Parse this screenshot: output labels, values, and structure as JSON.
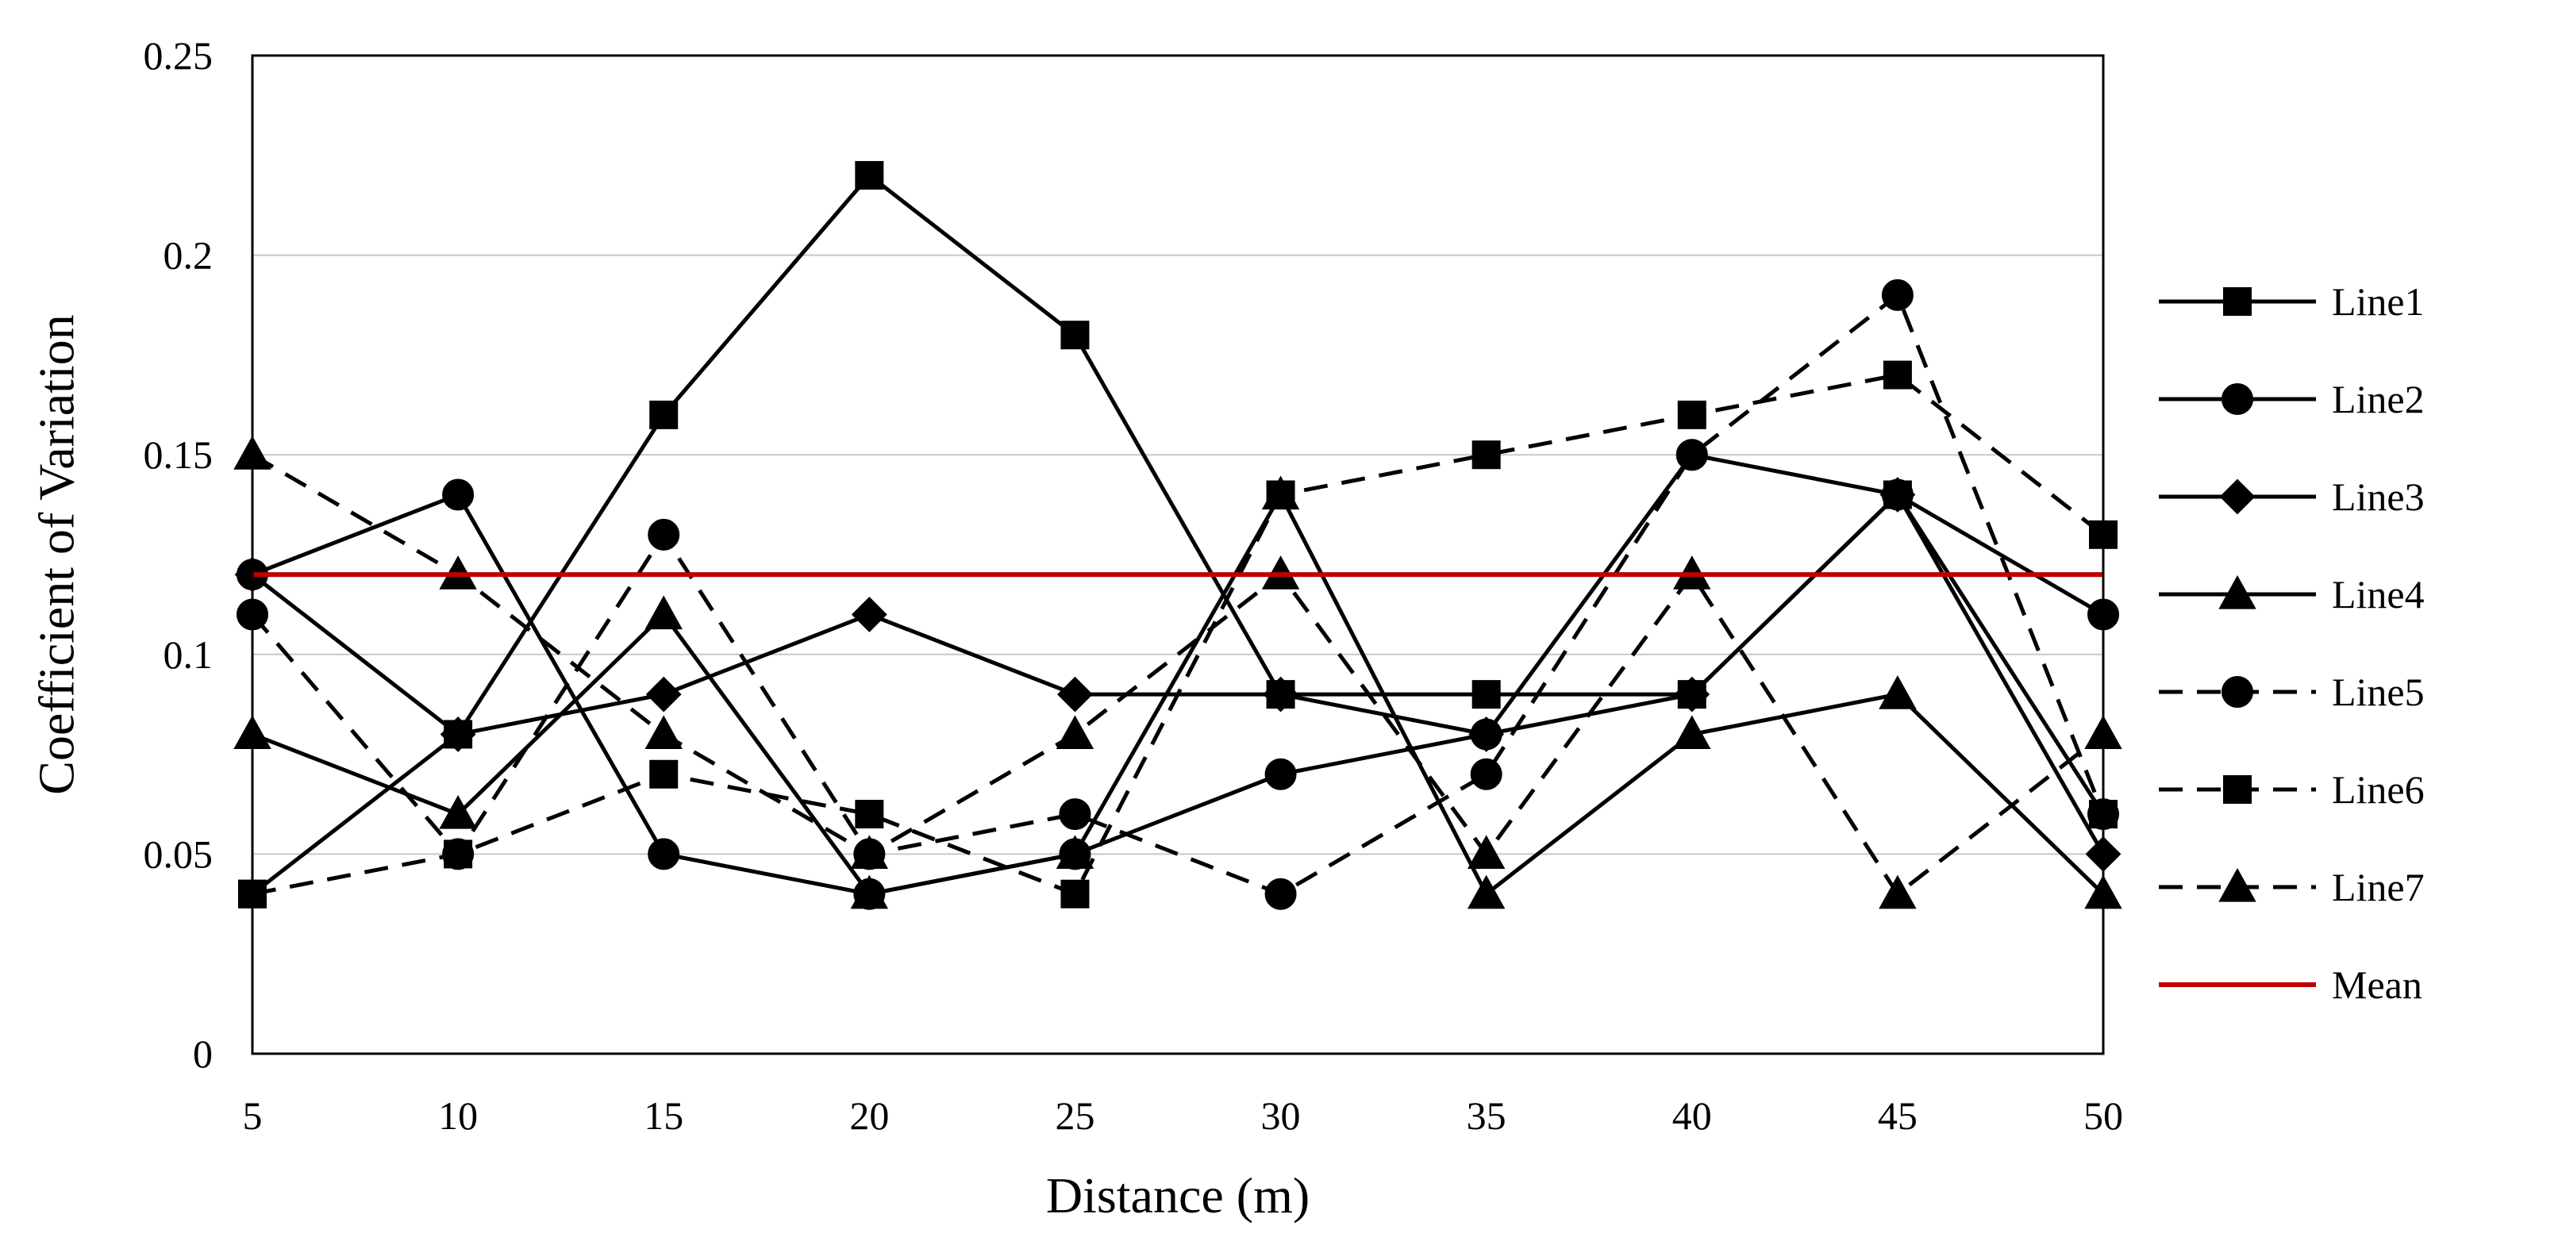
{
  "chart_data": {
    "type": "line",
    "title": "",
    "xlabel": "Distance (m)",
    "ylabel": "Coefficient of Variation",
    "x": [
      5,
      10,
      15,
      20,
      25,
      30,
      35,
      40,
      45,
      50
    ],
    "x_tick_labels": [
      "5",
      "10",
      "15",
      "20",
      "25",
      "30",
      "35",
      "40",
      "45",
      "50"
    ],
    "xlim": [
      5,
      50
    ],
    "ylim": [
      0,
      0.25
    ],
    "y_tick_labels": [
      "0",
      "0.05",
      "0.1",
      "0.15",
      "0.2",
      "0.25"
    ],
    "y_tick_values": [
      0,
      0.05,
      0.1,
      0.15,
      0.2,
      0.25
    ],
    "grid": "horizontal",
    "legend_position": "right",
    "series": [
      {
        "name": "Line1",
        "marker": "square",
        "dash": "solid",
        "color": "#000000",
        "values": [
          0.04,
          0.08,
          0.16,
          0.22,
          0.18,
          0.09,
          0.09,
          0.09,
          0.14,
          0.06
        ]
      },
      {
        "name": "Line2",
        "marker": "circle",
        "dash": "solid",
        "color": "#000000",
        "values": [
          0.12,
          0.14,
          0.05,
          0.04,
          0.05,
          0.07,
          0.08,
          0.15,
          0.14,
          0.11
        ]
      },
      {
        "name": "Line3",
        "marker": "diamond",
        "dash": "solid",
        "color": "#000000",
        "values": [
          0.12,
          0.08,
          0.09,
          0.11,
          0.09,
          0.09,
          0.08,
          0.09,
          0.14,
          0.05
        ]
      },
      {
        "name": "Line4",
        "marker": "triangle",
        "dash": "solid",
        "color": "#000000",
        "values": [
          0.08,
          0.06,
          0.11,
          0.04,
          0.05,
          0.14,
          0.04,
          0.08,
          0.09,
          0.04
        ]
      },
      {
        "name": "Line5",
        "marker": "circle",
        "dash": "dashed",
        "color": "#000000",
        "values": [
          0.11,
          0.05,
          0.13,
          0.05,
          0.06,
          0.04,
          0.07,
          0.15,
          0.19,
          0.06
        ]
      },
      {
        "name": "Line6",
        "marker": "square",
        "dash": "dashed",
        "color": "#000000",
        "values": [
          0.04,
          0.05,
          0.07,
          0.06,
          0.04,
          0.14,
          0.15,
          0.16,
          0.17,
          0.13
        ]
      },
      {
        "name": "Line7",
        "marker": "triangle",
        "dash": "dashed",
        "color": "#000000",
        "values": [
          0.15,
          0.12,
          0.08,
          0.05,
          0.08,
          0.12,
          0.05,
          0.12,
          0.04,
          0.08
        ]
      },
      {
        "name": "Mean",
        "marker": "none",
        "dash": "solid",
        "color": "#c00000",
        "values": [
          0.12,
          0.12,
          0.12,
          0.12,
          0.12,
          0.12,
          0.12,
          0.12,
          0.12,
          0.12
        ]
      }
    ]
  }
}
